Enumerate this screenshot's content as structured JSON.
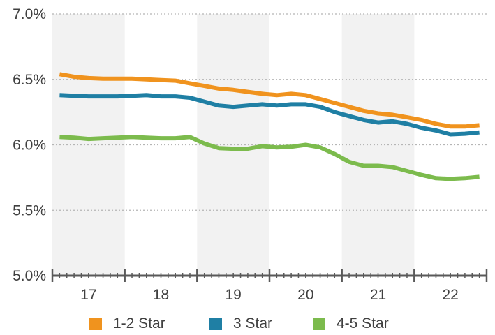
{
  "chart_data": {
    "type": "line",
    "x": [
      16.6,
      16.8,
      17.0,
      17.2,
      17.4,
      17.6,
      17.8,
      18.0,
      18.2,
      18.4,
      18.6,
      18.8,
      19.0,
      19.2,
      19.4,
      19.6,
      19.8,
      20.0,
      20.2,
      20.4,
      20.6,
      20.8,
      21.0,
      21.2,
      21.4,
      21.6,
      21.8,
      22.0,
      22.2,
      22.4
    ],
    "categories": [
      "17",
      "18",
      "19",
      "20",
      "21",
      "22"
    ],
    "series": [
      {
        "name": "1-2 Star",
        "color": "#f0931e",
        "values": [
          6.54,
          6.52,
          6.51,
          6.505,
          6.505,
          6.505,
          6.5,
          6.495,
          6.49,
          6.47,
          6.45,
          6.43,
          6.42,
          6.405,
          6.39,
          6.38,
          6.39,
          6.38,
          6.35,
          6.32,
          6.29,
          6.26,
          6.24,
          6.23,
          6.21,
          6.19,
          6.16,
          6.14,
          6.14,
          6.15
        ]
      },
      {
        "name": "3 Star",
        "color": "#1f7fa4",
        "values": [
          6.38,
          6.375,
          6.37,
          6.37,
          6.37,
          6.375,
          6.38,
          6.37,
          6.37,
          6.36,
          6.33,
          6.3,
          6.29,
          6.3,
          6.31,
          6.3,
          6.31,
          6.31,
          6.29,
          6.25,
          6.22,
          6.19,
          6.17,
          6.18,
          6.16,
          6.13,
          6.11,
          6.08,
          6.085,
          6.095
        ]
      },
      {
        "name": "4-5 Star",
        "color": "#7cbb4d",
        "values": [
          6.06,
          6.055,
          6.045,
          6.05,
          6.055,
          6.06,
          6.055,
          6.05,
          6.05,
          6.06,
          6.01,
          5.975,
          5.97,
          5.97,
          5.99,
          5.98,
          5.985,
          6.0,
          5.98,
          5.93,
          5.87,
          5.84,
          5.84,
          5.83,
          5.8,
          5.77,
          5.745,
          5.74,
          5.745,
          5.755
        ]
      }
    ],
    "yticks": [
      "5.0%",
      "5.5%",
      "6.0%",
      "6.5%",
      "7.0%"
    ],
    "ytick_values": [
      5.0,
      5.5,
      6.0,
      6.5,
      7.0
    ],
    "ylim": [
      5.0,
      7.0
    ],
    "xlim": [
      16.5,
      22.5
    ],
    "shaded_year_bands": [
      17,
      19,
      21
    ],
    "grid": "horizontal dotted",
    "legend_position": "bottom",
    "colors": {
      "band": "#f2f2f2",
      "grid": "#b5b5b5",
      "axis": "#595959",
      "text": "#404040"
    }
  }
}
